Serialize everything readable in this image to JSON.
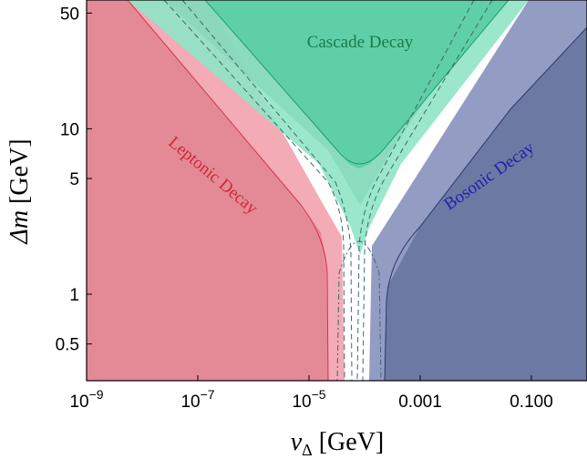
{
  "chart_data": {
    "type": "area",
    "title": "",
    "x_axis": {
      "scale": "log",
      "range": [
        1e-09,
        1
      ],
      "label_symbol": "v",
      "label_subscript": "Δ",
      "label_unit": " [GeV]",
      "ticks": [
        {
          "value": 1e-09,
          "base": "10",
          "exp": "−9"
        },
        {
          "value": 1e-07,
          "base": "10",
          "exp": "−7"
        },
        {
          "value": 1e-05,
          "base": "10",
          "exp": "−5"
        },
        {
          "value": 0.001,
          "text": "0.001"
        },
        {
          "value": 0.1,
          "text": "0.100"
        }
      ]
    },
    "y_axis": {
      "scale": "log",
      "range": [
        0.3,
        60
      ],
      "label_symbol": "Δm",
      "label_unit": " [GeV]",
      "ticks": [
        {
          "value": 0.5,
          "text": "0.5"
        },
        {
          "value": 1,
          "text": "1"
        },
        {
          "value": 5,
          "text": "5"
        },
        {
          "value": 10,
          "text": "10"
        },
        {
          "value": 50,
          "text": "50"
        }
      ]
    },
    "regions": [
      {
        "name": "Leptonic Decay",
        "label": "Leptonic Decay",
        "color": "#e0707f",
        "light_color": "#f2a7b2",
        "boundary_vdelta_low_dm_GeV": 2.5e-05
      },
      {
        "name": "Bosonic Decay",
        "label": "Bosonic Decay",
        "color": "#4f5f8e",
        "light_color": "#8d97c0",
        "boundary_vdelta_low_dm_GeV": 0.00016
      },
      {
        "name": "Cascade Decay",
        "label": "Cascade Decay",
        "color": "#4fcfa3",
        "light_color": "#8fe4c6",
        "min_dm_GeV": 6
      }
    ],
    "colors": {
      "leptonic_text": "#cc2a36",
      "bosonic_text": "#1d1fb3",
      "cascade_text": "#1c7a48"
    }
  }
}
